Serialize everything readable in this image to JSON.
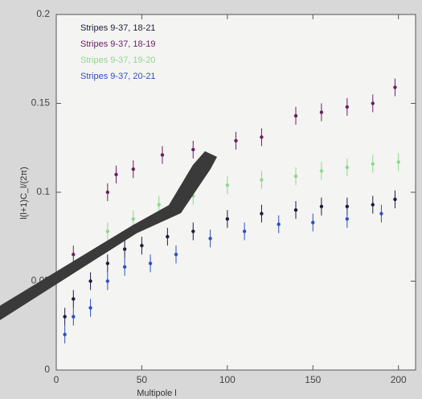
{
  "chart_data": {
    "type": "scatter",
    "x_label": "Multipole l",
    "y_label": "l(l+1)C_l/(2π)",
    "xlim": [
      0,
      210
    ],
    "ylim": [
      0,
      0.2
    ],
    "xticks": [
      0,
      50,
      100,
      150,
      200
    ],
    "yticks": [
      0,
      0.05,
      0.1,
      0.15,
      0.2
    ],
    "series": [
      {
        "name": "Stripes 9-37, 18-21",
        "color": "#1c1c40",
        "yerr": 0.005,
        "x": [
          5,
          10,
          20,
          30,
          40,
          50,
          65,
          80,
          100,
          120,
          140,
          155,
          170,
          185,
          198
        ],
        "values": [
          0.03,
          0.04,
          0.05,
          0.06,
          0.068,
          0.07,
          0.075,
          0.078,
          0.085,
          0.088,
          0.09,
          0.092,
          0.092,
          0.093,
          0.096
        ]
      },
      {
        "name": "Stripes 9-37, 18-19",
        "color": "#6a1f66",
        "yerr": 0.005,
        "x": [
          10,
          30,
          35,
          45,
          62,
          80,
          105,
          120,
          140,
          155,
          170,
          185,
          198
        ],
        "values": [
          0.065,
          0.1,
          0.11,
          0.113,
          0.121,
          0.124,
          0.129,
          0.131,
          0.143,
          0.145,
          0.148,
          0.15,
          0.159
        ]
      },
      {
        "name": "Stripes 9-37, 19-20",
        "color": "#8fd88f",
        "yerr": 0.005,
        "x": [
          30,
          45,
          60,
          80,
          100,
          120,
          140,
          155,
          170,
          185,
          200
        ],
        "values": [
          0.078,
          0.085,
          0.093,
          0.098,
          0.104,
          0.107,
          0.109,
          0.112,
          0.114,
          0.116,
          0.117
        ]
      },
      {
        "name": "Stripes 9-37, 20-21",
        "color": "#3050c0",
        "yerr": 0.005,
        "x": [
          5,
          10,
          20,
          30,
          40,
          55,
          70,
          90,
          110,
          130,
          150,
          170,
          190
        ],
        "values": [
          0.02,
          0.03,
          0.035,
          0.05,
          0.058,
          0.06,
          0.065,
          0.074,
          0.078,
          0.082,
          0.083,
          0.085,
          0.088
        ]
      }
    ]
  }
}
